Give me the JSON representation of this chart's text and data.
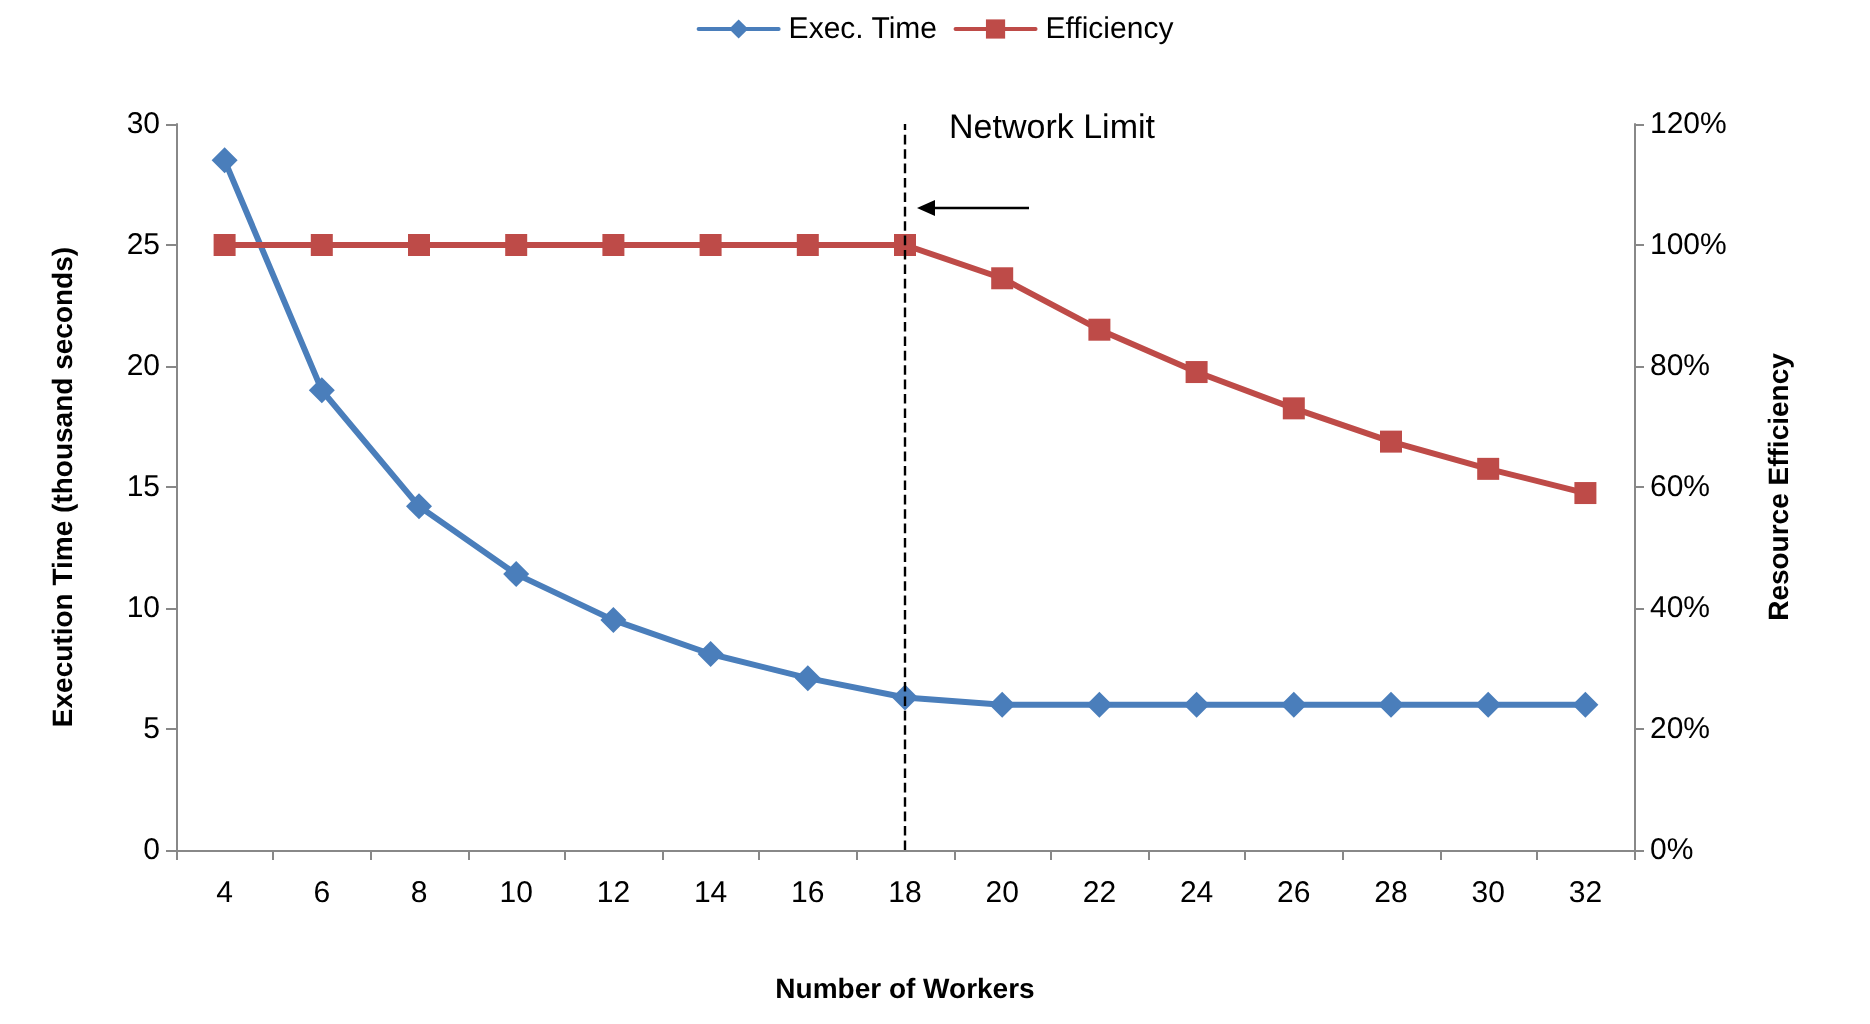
{
  "chart_data": {
    "type": "line",
    "xlabel": "Number of Workers",
    "ylabel": "Execution Time (thousand seconds)",
    "y2label": "Resource Efficiency",
    "categories": [
      "4",
      "6",
      "8",
      "10",
      "12",
      "14",
      "16",
      "18",
      "20",
      "22",
      "24",
      "26",
      "28",
      "30",
      "32"
    ],
    "series": [
      {
        "name": "Exec. Time",
        "color": "#4a7ebb",
        "marker": "diamond",
        "values": [
          28.5,
          19,
          14.2,
          11.4,
          9.5,
          8.1,
          7.1,
          6.3,
          6.0,
          6.0,
          6.0,
          6.0,
          6.0,
          6.0,
          6.0
        ]
      },
      {
        "name": "Efficiency",
        "color": "#be4b48",
        "marker": "square",
        "axis": "y2",
        "values": [
          100,
          100,
          100,
          100,
          100,
          100,
          100,
          100,
          94.5,
          86,
          79,
          73,
          67.5,
          63,
          59
        ]
      }
    ],
    "ylim": [
      0,
      30
    ],
    "yticks": [
      0,
      5,
      10,
      15,
      20,
      25,
      30
    ],
    "y2lim": [
      0,
      120
    ],
    "y2ticks": [
      {
        "value": 0,
        "label": "0%"
      },
      {
        "value": 20,
        "label": "20%"
      },
      {
        "value": 40,
        "label": "40%"
      },
      {
        "value": 60,
        "label": "60%"
      },
      {
        "value": 80,
        "label": "80%"
      },
      {
        "value": 100,
        "label": "100%"
      },
      {
        "value": 120,
        "label": "120%"
      }
    ],
    "ref_lines": [
      {
        "axis": "x",
        "value": "18",
        "label": "Network Limit",
        "line_style": "dashed",
        "color": "#000000"
      }
    ],
    "legend": "top",
    "grid": false,
    "line_style": "solid"
  }
}
